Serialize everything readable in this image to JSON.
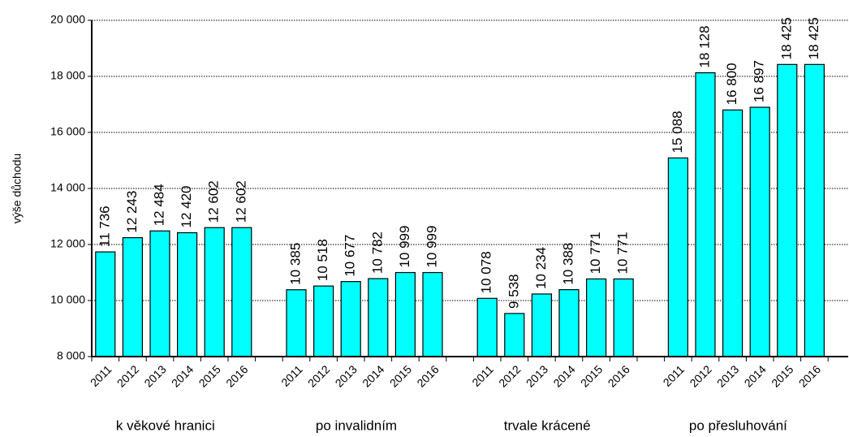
{
  "chart_data": {
    "type": "bar",
    "y_label": "výše důchodu",
    "color": "#00ffff",
    "grid": true,
    "ylim": [
      8000,
      20000
    ],
    "yticks": [
      {
        "value": 8000,
        "label": "8 000"
      },
      {
        "value": 10000,
        "label": "10 000"
      },
      {
        "value": 12000,
        "label": "12 000"
      },
      {
        "value": 14000,
        "label": "14 000"
      },
      {
        "value": 16000,
        "label": "16 000"
      },
      {
        "value": 18000,
        "label": "18 000"
      },
      {
        "value": 20000,
        "label": "20 000"
      }
    ],
    "groups": [
      {
        "name": "k věkové hranici",
        "categories": [
          "2011",
          "2012",
          "2013",
          "2014",
          "2015",
          "2016"
        ],
        "values": [
          11736,
          12243,
          12484,
          12420,
          12602,
          12602
        ],
        "value_labels": [
          "11 736",
          "12 243",
          "12 484",
          "12 420",
          "12 602",
          "12 602"
        ]
      },
      {
        "name": "po invalidním",
        "categories": [
          "2011",
          "2012",
          "2013",
          "2014",
          "2015",
          "2016"
        ],
        "values": [
          10385,
          10518,
          10677,
          10782,
          10999,
          10999
        ],
        "value_labels": [
          "10 385",
          "10 518",
          "10 677",
          "10 782",
          "10 999",
          "10 999"
        ]
      },
      {
        "name": "trvale krácené",
        "categories": [
          "2011",
          "2012",
          "2013",
          "2014",
          "2015",
          "2016"
        ],
        "values": [
          10078,
          9538,
          10234,
          10388,
          10771,
          10771
        ],
        "value_labels": [
          "10 078",
          "9 538",
          "10 234",
          "10 388",
          "10 771",
          "10 771"
        ]
      },
      {
        "name": "po přesluhování",
        "categories": [
          "2011",
          "2012",
          "2013",
          "2014",
          "2015",
          "2016"
        ],
        "values": [
          15088,
          18128,
          16800,
          16897,
          18425,
          18425
        ],
        "value_labels": [
          "15 088",
          "18 128",
          "16 800",
          "16 897",
          "18 425",
          "18 425"
        ]
      }
    ]
  }
}
